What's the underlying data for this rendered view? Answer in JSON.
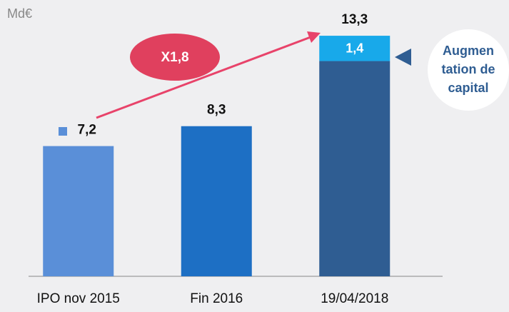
{
  "chart_data": {
    "type": "stacked_bar",
    "unit_label": "Md€",
    "categories": [
      "IPO nov 2015",
      "Fin 2016",
      "19/04/2018"
    ],
    "series": [
      {
        "colors": [
          "#5a8fd8",
          "#1d6fc4",
          "#2f5d92"
        ],
        "values": [
          7.2,
          8.3,
          11.9
        ]
      },
      {
        "colors": [
          null,
          null,
          "#18a9ea"
        ],
        "values": [
          null,
          null,
          1.4
        ],
        "value_labels": [
          null,
          null,
          "1,4"
        ]
      }
    ],
    "totals": [
      7.2,
      8.3,
      13.3
    ],
    "total_labels": [
      "7,2",
      "8,3",
      "13,3"
    ],
    "ylim": [
      0,
      15
    ],
    "growth_annotation": "X1,8",
    "callout": [
      "Augmen",
      "tation de",
      "capital"
    ]
  }
}
